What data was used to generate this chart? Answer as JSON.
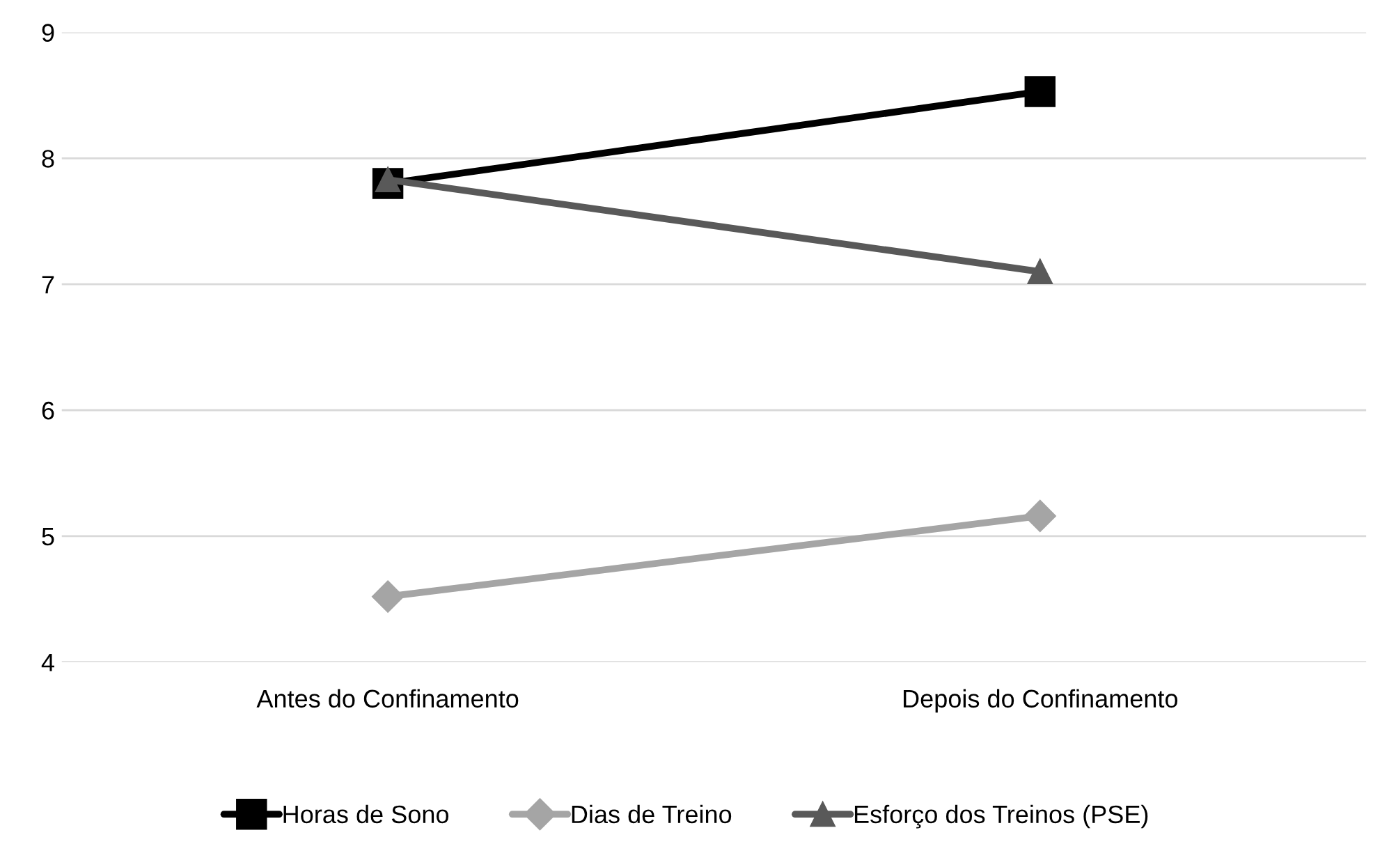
{
  "chart_data": {
    "type": "line",
    "categories": [
      "Antes do Confinamento",
      "Depois do Confinamento"
    ],
    "series": [
      {
        "name": "Horas de Sono",
        "color": "#000000",
        "marker": "square",
        "values": [
          7.8,
          8.53
        ]
      },
      {
        "name": "Dias de Treino",
        "color": "#a5a5a5",
        "marker": "diamond",
        "values": [
          4.52,
          5.16
        ]
      },
      {
        "name": "Esforço dos Treinos (PSE)",
        "color": "#595959",
        "marker": "triangle",
        "values": [
          7.83,
          7.1
        ]
      }
    ],
    "ylim": [
      4,
      9
    ],
    "yticks": [
      4,
      5,
      6,
      7,
      8,
      9
    ],
    "grid": "y",
    "legend": "bottom"
  }
}
